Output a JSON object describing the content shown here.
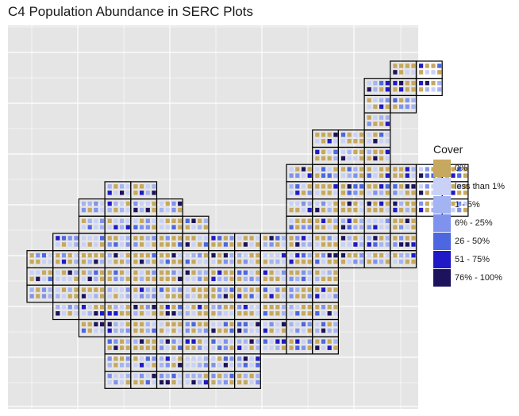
{
  "chart_data": {
    "type": "heatmap",
    "title": "C4 Population Abundance in SERC Plots",
    "legend_title": "Cover",
    "legend_position": "right",
    "grid": true,
    "background": "#e5e5e5",
    "categories": [
      {
        "label": "0%",
        "color": "#c6a85e"
      },
      {
        "label": "less than 1%",
        "color": "#c9d1f7"
      },
      {
        "label": "1 - 5%",
        "color": "#a4b3f1"
      },
      {
        "label": "6% - 25%",
        "color": "#7f92ed"
      },
      {
        "label": "26 - 50%",
        "color": "#4d67e0"
      },
      {
        "label": "51 - 75%",
        "color": "#1f19c6"
      },
      {
        "label": "76% - 100%",
        "color": "#1c135c"
      }
    ],
    "plot_rows": [
      {
        "row": 0,
        "cols": [
          14,
          15
        ]
      },
      {
        "row": 1,
        "cols": [
          13,
          14,
          15
        ]
      },
      {
        "row": 2,
        "cols": [
          13,
          14
        ]
      },
      {
        "row": 3,
        "cols": [
          13
        ]
      },
      {
        "row": 4,
        "cols": [
          11,
          12,
          13
        ]
      },
      {
        "row": 5,
        "cols": [
          11,
          12,
          13
        ]
      },
      {
        "row": 6,
        "cols": [
          10,
          11,
          12,
          13,
          14,
          15,
          16
        ]
      },
      {
        "row": 7,
        "cols": [
          3,
          4,
          10,
          11,
          12,
          13,
          14,
          15,
          16
        ]
      },
      {
        "row": 8,
        "cols": [
          2,
          3,
          4,
          5,
          10,
          11,
          12,
          13,
          14,
          15,
          16
        ]
      },
      {
        "row": 9,
        "cols": [
          2,
          3,
          4,
          5,
          6,
          10,
          11,
          12,
          13,
          14
        ]
      },
      {
        "row": 10,
        "cols": [
          1,
          2,
          3,
          4,
          5,
          6,
          7,
          8,
          9,
          10,
          11,
          12,
          13,
          14
        ]
      },
      {
        "row": 11,
        "cols": [
          0,
          1,
          2,
          3,
          4,
          5,
          6,
          7,
          8,
          9,
          10,
          11,
          12,
          13,
          14
        ]
      },
      {
        "row": 12,
        "cols": [
          0,
          1,
          2,
          3,
          4,
          5,
          6,
          7,
          8,
          9,
          10,
          11
        ]
      },
      {
        "row": 13,
        "cols": [
          0,
          1,
          2,
          3,
          4,
          5,
          6,
          7,
          8,
          9,
          10,
          11
        ]
      },
      {
        "row": 14,
        "cols": [
          1,
          2,
          3,
          4,
          5,
          6,
          7,
          8,
          9,
          10,
          11
        ]
      },
      {
        "row": 15,
        "cols": [
          2,
          3,
          4,
          5,
          6,
          7,
          8,
          9,
          10,
          11
        ]
      },
      {
        "row": 16,
        "cols": [
          3,
          4,
          5,
          6,
          7,
          8,
          9,
          10,
          11
        ]
      },
      {
        "row": 17,
        "cols": [
          3,
          4,
          5,
          6,
          7,
          8
        ]
      },
      {
        "row": 18,
        "cols": [
          3,
          4,
          5,
          6,
          7,
          8
        ]
      }
    ]
  }
}
